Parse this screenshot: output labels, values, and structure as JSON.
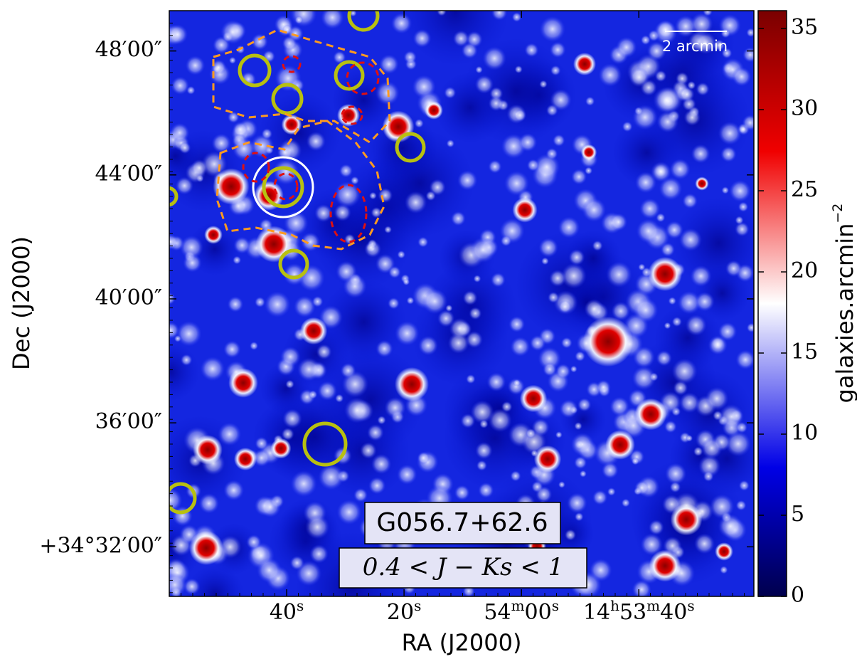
{
  "chart_data": {
    "type": "heatmap",
    "title": "G056.7+62.6",
    "subtitle": "0.4 < J − Ks < 1",
    "annotation": "2 arcmin",
    "xlabel": "RA (J2000)",
    "ylabel": "Dec (J2000)",
    "colorbar_label": [
      "galaxies.arcmin",
      "−2"
    ],
    "xlim": [
      120,
      20.4
    ],
    "xticks": [
      {
        "value": 100,
        "label": [
          "40",
          "s"
        ]
      },
      {
        "value": 80,
        "label": [
          "20",
          "s"
        ]
      },
      {
        "value": 60,
        "label": [
          "54",
          "m",
          "00",
          "s"
        ]
      },
      {
        "value": 40,
        "label": [
          "14",
          "h",
          "53",
          "m",
          "40",
          "s"
        ]
      }
    ],
    "ylim": [
      30.4,
      49.3
    ],
    "yticks": [
      {
        "value": 48,
        "label": "48′00″"
      },
      {
        "value": 44,
        "label": "44′00″"
      },
      {
        "value": 40,
        "label": "40′00″"
      },
      {
        "value": 36,
        "label": "36′00″"
      },
      {
        "value": 32,
        "label": "+34°32′00″"
      }
    ],
    "clim": [
      0,
      36.1
    ],
    "cticks": [
      0,
      5,
      10,
      15,
      20,
      25,
      30,
      35
    ]
  }
}
